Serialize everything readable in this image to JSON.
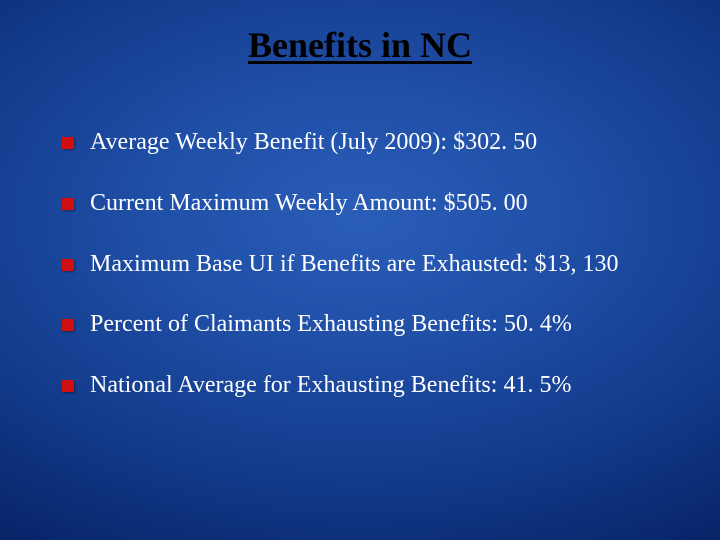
{
  "slide": {
    "title": "Benefits in NC",
    "title_color": "#000000",
    "title_fontsize": 36,
    "background_gradient_inner": "#2a5db8",
    "background_gradient_outer": "#041a50",
    "bullet_color": "#d01010",
    "text_color": "#ffffff",
    "body_fontsize": 24,
    "bullets": [
      {
        "text": "Average Weekly Benefit (July 2009): $302. 50"
      },
      {
        "text": "Current Maximum Weekly Amount:   $505. 00"
      },
      {
        "text": "Maximum Base UI if Benefits are Exhausted: $13, 130"
      },
      {
        "text": "Percent of Claimants Exhausting Benefits: 50. 4%"
      },
      {
        "text": "National Average for Exhausting Benefits: 41. 5%"
      }
    ]
  }
}
